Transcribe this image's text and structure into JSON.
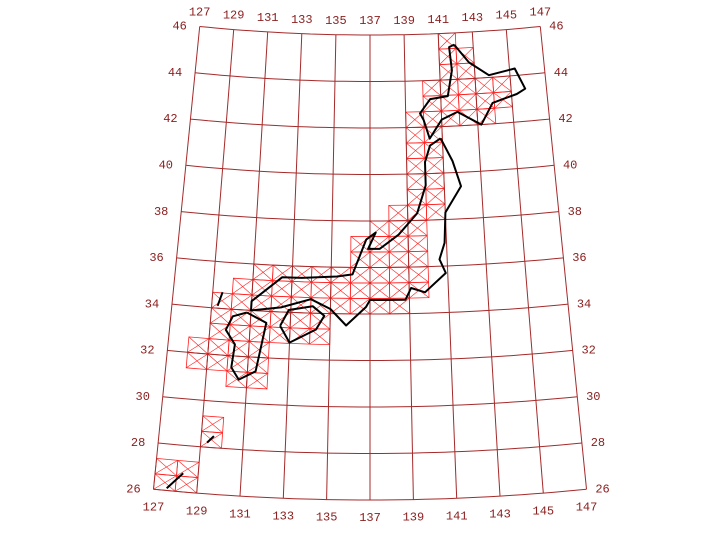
{
  "map": {
    "top_lon_labels": [
      "127",
      "129",
      "131",
      "133",
      "135",
      "137",
      "139",
      "141",
      "143",
      "145",
      "147"
    ],
    "bottom_lon_labels": [
      "127",
      "129",
      "131",
      "133",
      "135",
      "137",
      "139",
      "141",
      "143",
      "145",
      "147"
    ],
    "left_lat_labels": [
      "26",
      "28",
      "30",
      "32",
      "34",
      "36",
      "38",
      "40",
      "42",
      "44",
      "46"
    ],
    "right_lat_labels": [
      "26",
      "28",
      "30",
      "32",
      "34",
      "36",
      "38",
      "40",
      "42",
      "44",
      "46"
    ]
  }
}
